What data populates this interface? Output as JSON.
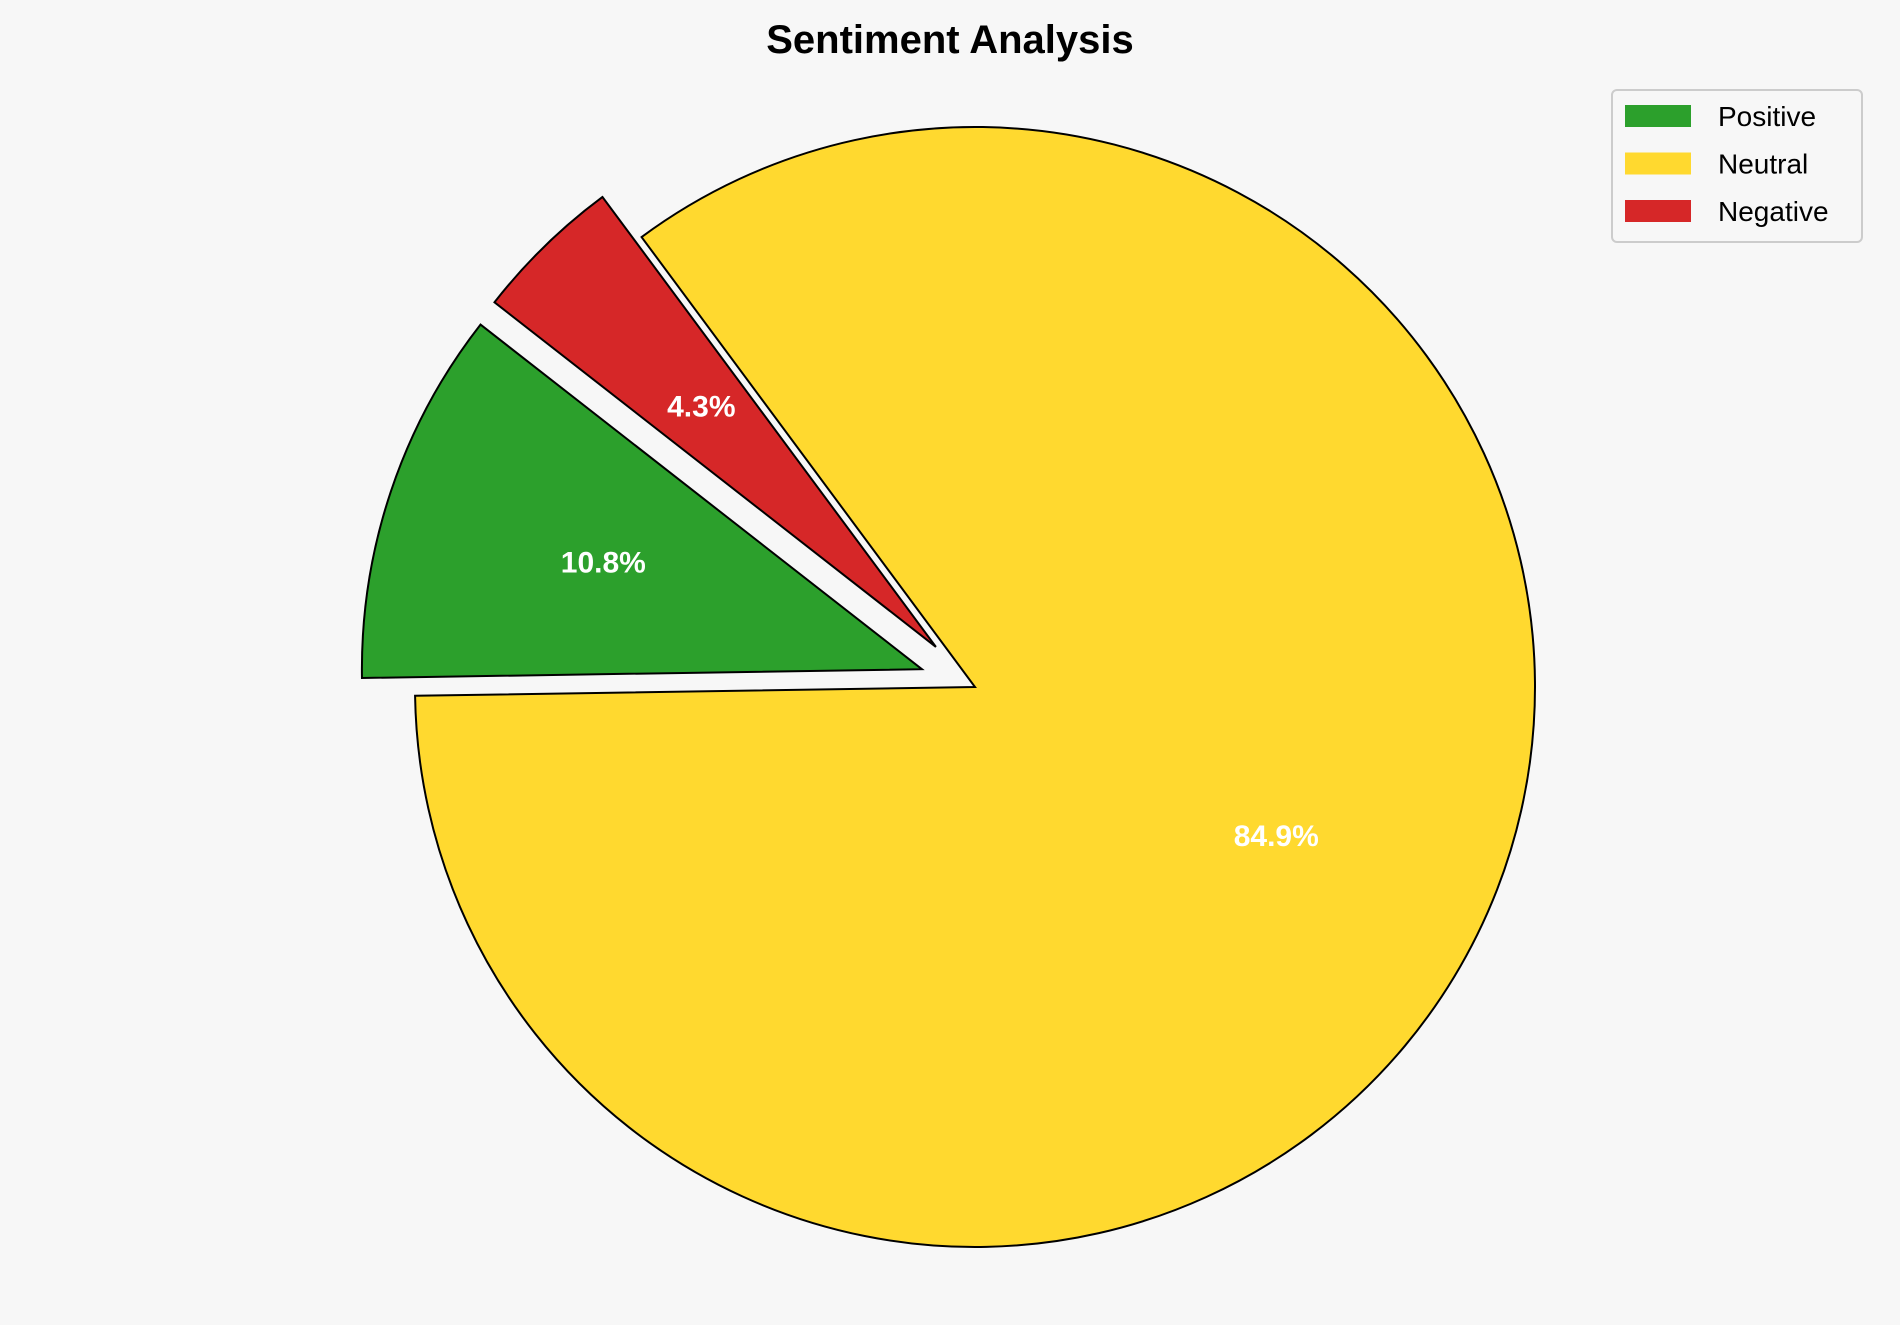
{
  "chart_data": {
    "type": "pie",
    "title": "Sentiment Analysis",
    "categories": [
      "Positive",
      "Neutral",
      "Negative"
    ],
    "values": [
      10.8,
      84.9,
      4.3
    ],
    "labels": [
      "10.8%",
      "84.9%",
      "4.3%"
    ],
    "colors": [
      "#2ca02c",
      "#ffd92f",
      "#d62728"
    ],
    "exploded": [
      true,
      false,
      true
    ],
    "legend": {
      "placement": "top-right",
      "entries": [
        "Positive",
        "Neutral",
        "Negative"
      ]
    },
    "background": "#f7f7f7"
  }
}
